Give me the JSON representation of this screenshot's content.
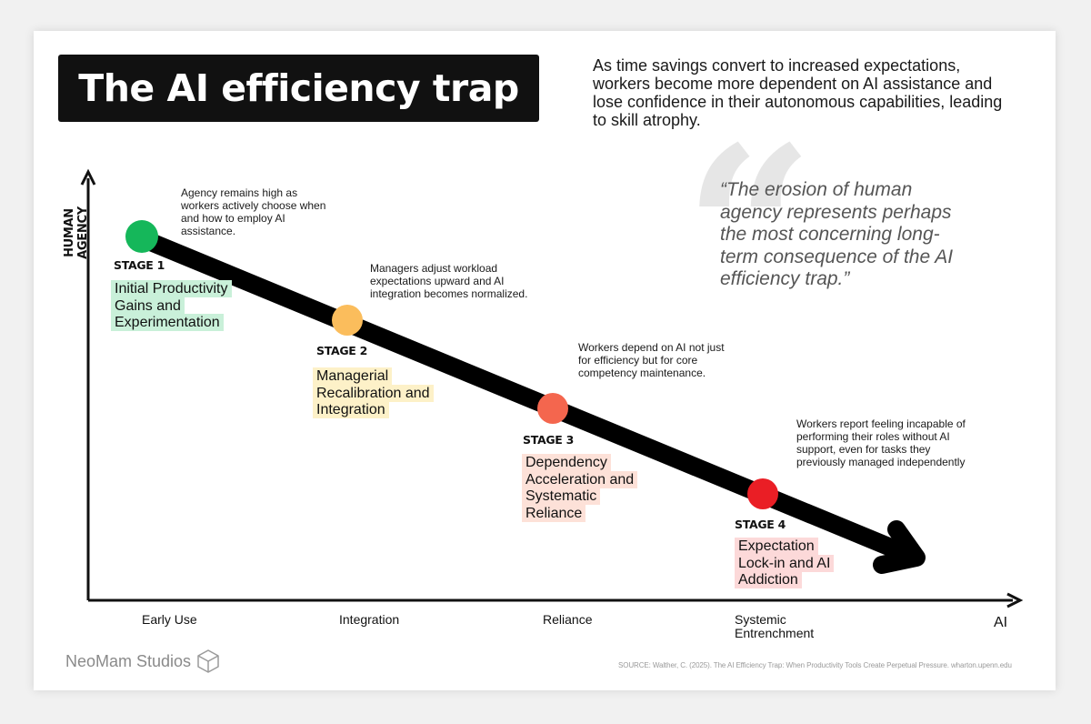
{
  "title": "The AI efficiency trap",
  "intro": "As time savings convert to increased expectations, workers become more dependent on AI assistance and lose confidence in their autonomous capabilities, leading to skill atrophy.",
  "quote": {
    "mark": "“",
    "text": "“The erosion of human agency represents perhaps the most concerning long-term consequence of the AI efficiency trap.”"
  },
  "axes": {
    "y_label": "HUMAN AGENCY",
    "x_end_label": "AI",
    "x_categories": [
      "Early Use",
      "Integration",
      "Reliance",
      "Systemic Entrenchment"
    ]
  },
  "stages": [
    {
      "label": "STAGE 1",
      "name": "Initial Productivity Gains and Experimentation",
      "description": "Agency remains high as workers actively choose when and how to employ AI assistance.",
      "color": "#15b75a",
      "highlight": "#c9f0d9"
    },
    {
      "label": "STAGE 2",
      "name": "Managerial Recalibration and Integration",
      "description": "Managers adjust workload expectations upward and AI integration becomes normalized.",
      "color": "#fbbd5c",
      "highlight": "#fdf1c8"
    },
    {
      "label": "STAGE 3",
      "name": "Dependency Acceleration and Systematic Reliance",
      "description": "Workers depend on AI not just for efficiency but for core competency maintenance.",
      "color": "#f4664e",
      "highlight": "#fde1d8"
    },
    {
      "label": "STAGE 4",
      "name": "Expectation Lock-in and AI Addiction",
      "description": "Workers report feeling incapable of performing their roles without AI support, even for tasks they previously managed independently",
      "color": "#ea1e25",
      "highlight": "#fcd9d9"
    }
  ],
  "brand": {
    "name": "NeoMam Studios",
    "icon": "cube-icon"
  },
  "source": "SOURCE: Walther, C. (2025). The AI Efficiency Trap: When Productivity Tools Create Perpetual Pressure. wharton.upenn.edu"
}
